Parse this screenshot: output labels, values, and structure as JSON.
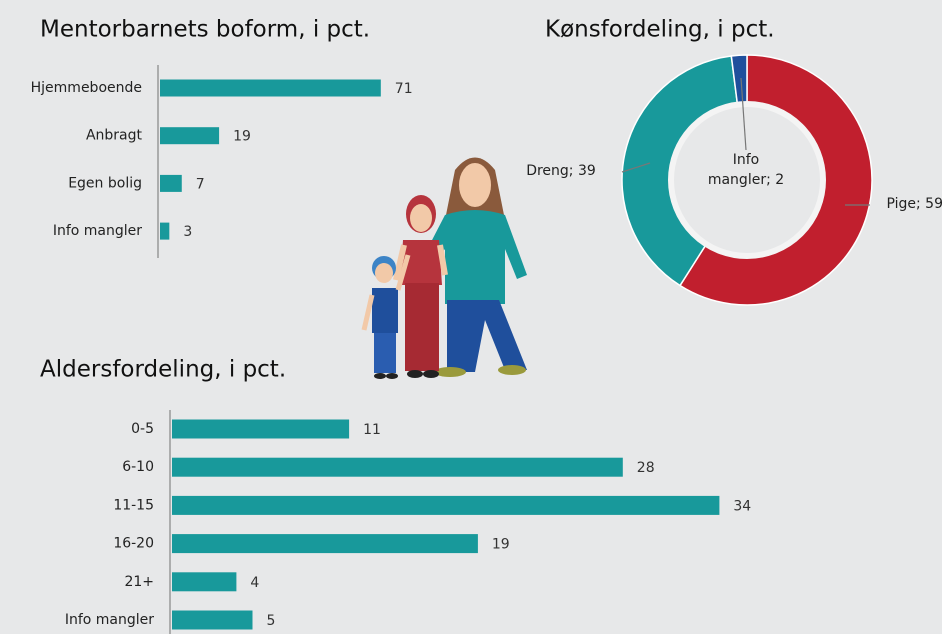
{
  "chart_data": [
    {
      "type": "hbar",
      "title": "Mentorbarnets boform, i pct.",
      "categories": [
        "Hjemmeboende",
        "Anbragt",
        "Egen bolig",
        "Info mangler"
      ],
      "values": [
        71,
        19,
        7,
        3
      ],
      "color": "#18999b"
    },
    {
      "type": "donut",
      "title": "Kønsfordeling, i pct.",
      "values": [
        59,
        39,
        2
      ],
      "value_labels": [
        "Pige; 59",
        "Dreng; 39",
        "Info mangler; 2"
      ],
      "colors": [
        "#c11f2e",
        "#18999b",
        "#1f4f9c"
      ]
    },
    {
      "type": "hbar",
      "title": "Aldersfordeling, i pct.",
      "categories": [
        "0-5",
        "6-10",
        "11-15",
        "16-20",
        "21+",
        "Info mangler"
      ],
      "values": [
        11,
        28,
        34,
        19,
        4,
        5
      ],
      "color": "#18999b"
    }
  ]
}
